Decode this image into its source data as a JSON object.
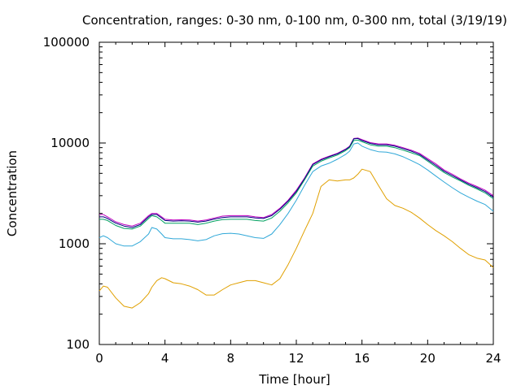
{
  "chart_data": {
    "type": "line",
    "title": "Concentration, ranges: 0-30 nm, 0-100 nm, 0-300 nm, total (3/19/19)",
    "xlabel": "Time [hour]",
    "ylabel": "Concentration",
    "xlim": [
      0,
      24
    ],
    "ylim": [
      100,
      100000
    ],
    "yscale": "log",
    "grid": false,
    "legend": "none",
    "xticks": [
      "0",
      "4",
      "8",
      "12",
      "16",
      "20",
      "24"
    ],
    "yticks": [
      "100",
      "1000",
      "10000",
      "100000"
    ],
    "x": [
      0,
      0.25,
      0.5,
      1,
      1.5,
      2,
      2.5,
      3,
      3.2,
      3.5,
      3.8,
      4,
      4.5,
      5,
      5.5,
      6,
      6.5,
      7,
      7.5,
      8,
      8.5,
      9,
      9.5,
      10,
      10.5,
      11,
      11.5,
      12,
      12.5,
      13,
      13.5,
      14,
      14.5,
      15,
      15.25,
      15.5,
      15.75,
      16,
      16.5,
      17,
      17.5,
      18,
      18.5,
      19,
      19.5,
      20,
      20.5,
      21,
      21.5,
      22,
      22.5,
      23,
      23.5,
      24
    ],
    "series": [
      {
        "color": "#c000c0",
        "values": [
          1950,
          1950,
          1850,
          1650,
          1550,
          1500,
          1600,
          1900,
          2000,
          2000,
          1850,
          1750,
          1720,
          1730,
          1720,
          1680,
          1720,
          1800,
          1880,
          1900,
          1900,
          1900,
          1850,
          1820,
          1950,
          2250,
          2700,
          3400,
          4500,
          6200,
          6900,
          7400,
          7900,
          8700,
          9300,
          11100,
          11200,
          10800,
          10100,
          9800,
          9800,
          9500,
          9000,
          8500,
          7900,
          7000,
          6200,
          5400,
          4900,
          4400,
          4000,
          3700,
          3400,
          3000
        ]
      },
      {
        "color": "#000080",
        "values": [
          1850,
          1850,
          1780,
          1600,
          1500,
          1450,
          1550,
          1850,
          1950,
          1950,
          1800,
          1700,
          1680,
          1690,
          1680,
          1640,
          1680,
          1760,
          1820,
          1850,
          1850,
          1850,
          1800,
          1780,
          1900,
          2200,
          2650,
          3300,
          4400,
          6100,
          6800,
          7300,
          7800,
          8600,
          9200,
          11000,
          11100,
          10600,
          9900,
          9600,
          9600,
          9300,
          8800,
          8300,
          7700,
          6800,
          6000,
          5250,
          4750,
          4300,
          3900,
          3600,
          3300,
          2900
        ]
      },
      {
        "color": "#00a060",
        "values": [
          1750,
          1750,
          1700,
          1520,
          1420,
          1400,
          1500,
          1780,
          1900,
          1850,
          1700,
          1600,
          1600,
          1600,
          1600,
          1550,
          1600,
          1680,
          1740,
          1750,
          1750,
          1750,
          1700,
          1680,
          1800,
          2100,
          2550,
          3200,
          4300,
          5900,
          6600,
          7100,
          7600,
          8400,
          9000,
          10600,
          10700,
          10300,
          9600,
          9300,
          9300,
          9000,
          8500,
          8000,
          7500,
          6600,
          5800,
          5100,
          4600,
          4200,
          3800,
          3500,
          3200,
          2800
        ]
      },
      {
        "color": "#30a8d8",
        "values": [
          1150,
          1200,
          1150,
          1000,
          950,
          950,
          1050,
          1250,
          1450,
          1400,
          1250,
          1150,
          1120,
          1120,
          1100,
          1070,
          1100,
          1200,
          1260,
          1270,
          1250,
          1200,
          1150,
          1130,
          1250,
          1550,
          2000,
          2700,
          3800,
          5200,
          5900,
          6300,
          6900,
          7700,
          8300,
          9800,
          10000,
          9300,
          8600,
          8200,
          8100,
          7800,
          7300,
          6700,
          6100,
          5400,
          4700,
          4100,
          3600,
          3200,
          2900,
          2650,
          2450,
          2100
        ]
      },
      {
        "color": "#e0a000",
        "values": [
          340,
          380,
          370,
          290,
          240,
          230,
          260,
          320,
          370,
          430,
          460,
          450,
          410,
          400,
          380,
          350,
          310,
          310,
          350,
          390,
          410,
          430,
          430,
          410,
          390,
          450,
          620,
          900,
          1350,
          2000,
          3700,
          4300,
          4200,
          4300,
          4300,
          4500,
          4900,
          5500,
          5200,
          3800,
          2800,
          2400,
          2250,
          2050,
          1800,
          1550,
          1350,
          1200,
          1050,
          900,
          780,
          720,
          690,
          580
        ]
      }
    ]
  }
}
